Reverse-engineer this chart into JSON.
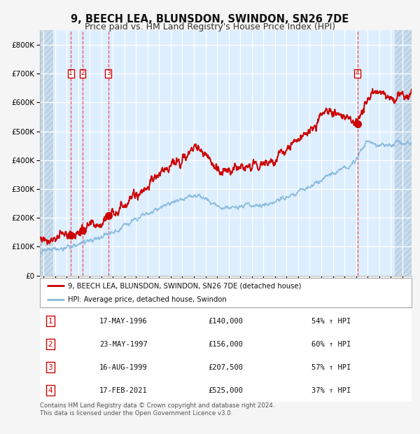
{
  "title": "9, BEECH LEA, BLUNSDON, SWINDON, SN26 7DE",
  "subtitle": "Price paid vs. HM Land Registry's House Price Index (HPI)",
  "title_fontsize": 10.5,
  "subtitle_fontsize": 9,
  "fig_bg_color": "#f5f5f5",
  "plot_bg_color": "#ddeeff",
  "hatch_bg_color": "#c8dced",
  "grid_color": "#ffffff",
  "red_line_color": "#cc0000",
  "blue_line_color": "#88bbdd",
  "sale_marker_color": "#cc0000",
  "dashed_line_color": "#ee3333",
  "transactions": [
    {
      "date_num": 1996.37,
      "price": 140000,
      "label": "1"
    },
    {
      "date_num": 1997.39,
      "price": 156000,
      "label": "2"
    },
    {
      "date_num": 1999.62,
      "price": 207500,
      "label": "3"
    },
    {
      "date_num": 2021.12,
      "price": 525000,
      "label": "4"
    }
  ],
  "legend_entries": [
    "9, BEECH LEA, BLUNSDON, SWINDON, SN26 7DE (detached house)",
    "HPI: Average price, detached house, Swindon"
  ],
  "table_rows": [
    {
      "num": "1",
      "date": "17-MAY-1996",
      "price": "£140,000",
      "note": "54% ↑ HPI"
    },
    {
      "num": "2",
      "date": "23-MAY-1997",
      "price": "£156,000",
      "note": "60% ↑ HPI"
    },
    {
      "num": "3",
      "date": "16-AUG-1999",
      "price": "£207,500",
      "note": "57% ↑ HPI"
    },
    {
      "num": "4",
      "date": "17-FEB-2021",
      "price": "£525,000",
      "note": "37% ↑ HPI"
    }
  ],
  "footnote": "Contains HM Land Registry data © Crown copyright and database right 2024.\nThis data is licensed under the Open Government Licence v3.0.",
  "ylim": [
    0,
    850000
  ],
  "xlim_start": 1993.7,
  "xlim_end": 2025.8,
  "hatch_left_end": 1994.85,
  "hatch_right_start": 2024.35
}
